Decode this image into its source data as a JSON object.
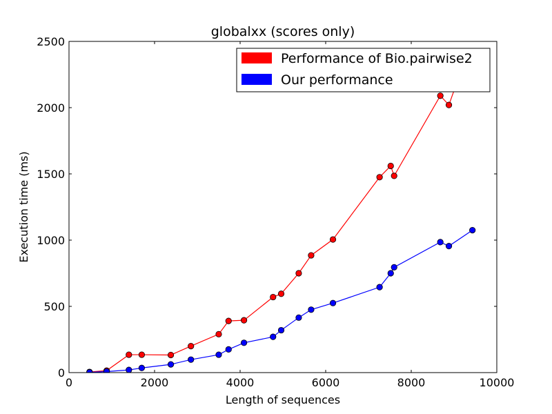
{
  "chart_data": {
    "type": "line",
    "title": "globalxx (scores only)",
    "xlabel": "Length of sequences",
    "ylabel": "Execution time (ms)",
    "xlim": [
      0,
      10000
    ],
    "ylim": [
      0,
      2500
    ],
    "xticks": [
      0,
      2000,
      4000,
      6000,
      8000,
      10000
    ],
    "yticks": [
      0,
      500,
      1000,
      1500,
      2000,
      2500
    ],
    "grid": false,
    "legend_position": "top-right",
    "series": [
      {
        "name": "Performance of Bio.pairwise2",
        "color": "#ff0000",
        "x": [
          480,
          880,
          1400,
          1700,
          2380,
          2850,
          3500,
          3730,
          4090,
          4770,
          4960,
          5370,
          5660,
          6170,
          7260,
          7520,
          7600,
          8680,
          8880,
          9100
        ],
        "y": [
          5,
          15,
          135,
          135,
          133,
          200,
          290,
          390,
          395,
          570,
          595,
          750,
          885,
          1005,
          1475,
          1560,
          1485,
          2090,
          2020,
          2220
        ]
      },
      {
        "name": "Our performance",
        "color": "#0000ff",
        "x": [
          480,
          880,
          1400,
          1700,
          2380,
          2850,
          3500,
          3730,
          4090,
          4770,
          4960,
          5370,
          5660,
          6170,
          7260,
          7520,
          7600,
          8680,
          8880,
          9430
        ],
        "y": [
          2,
          8,
          20,
          35,
          62,
          98,
          135,
          175,
          225,
          270,
          320,
          415,
          475,
          525,
          645,
          750,
          795,
          985,
          955,
          1075
        ]
      }
    ]
  }
}
